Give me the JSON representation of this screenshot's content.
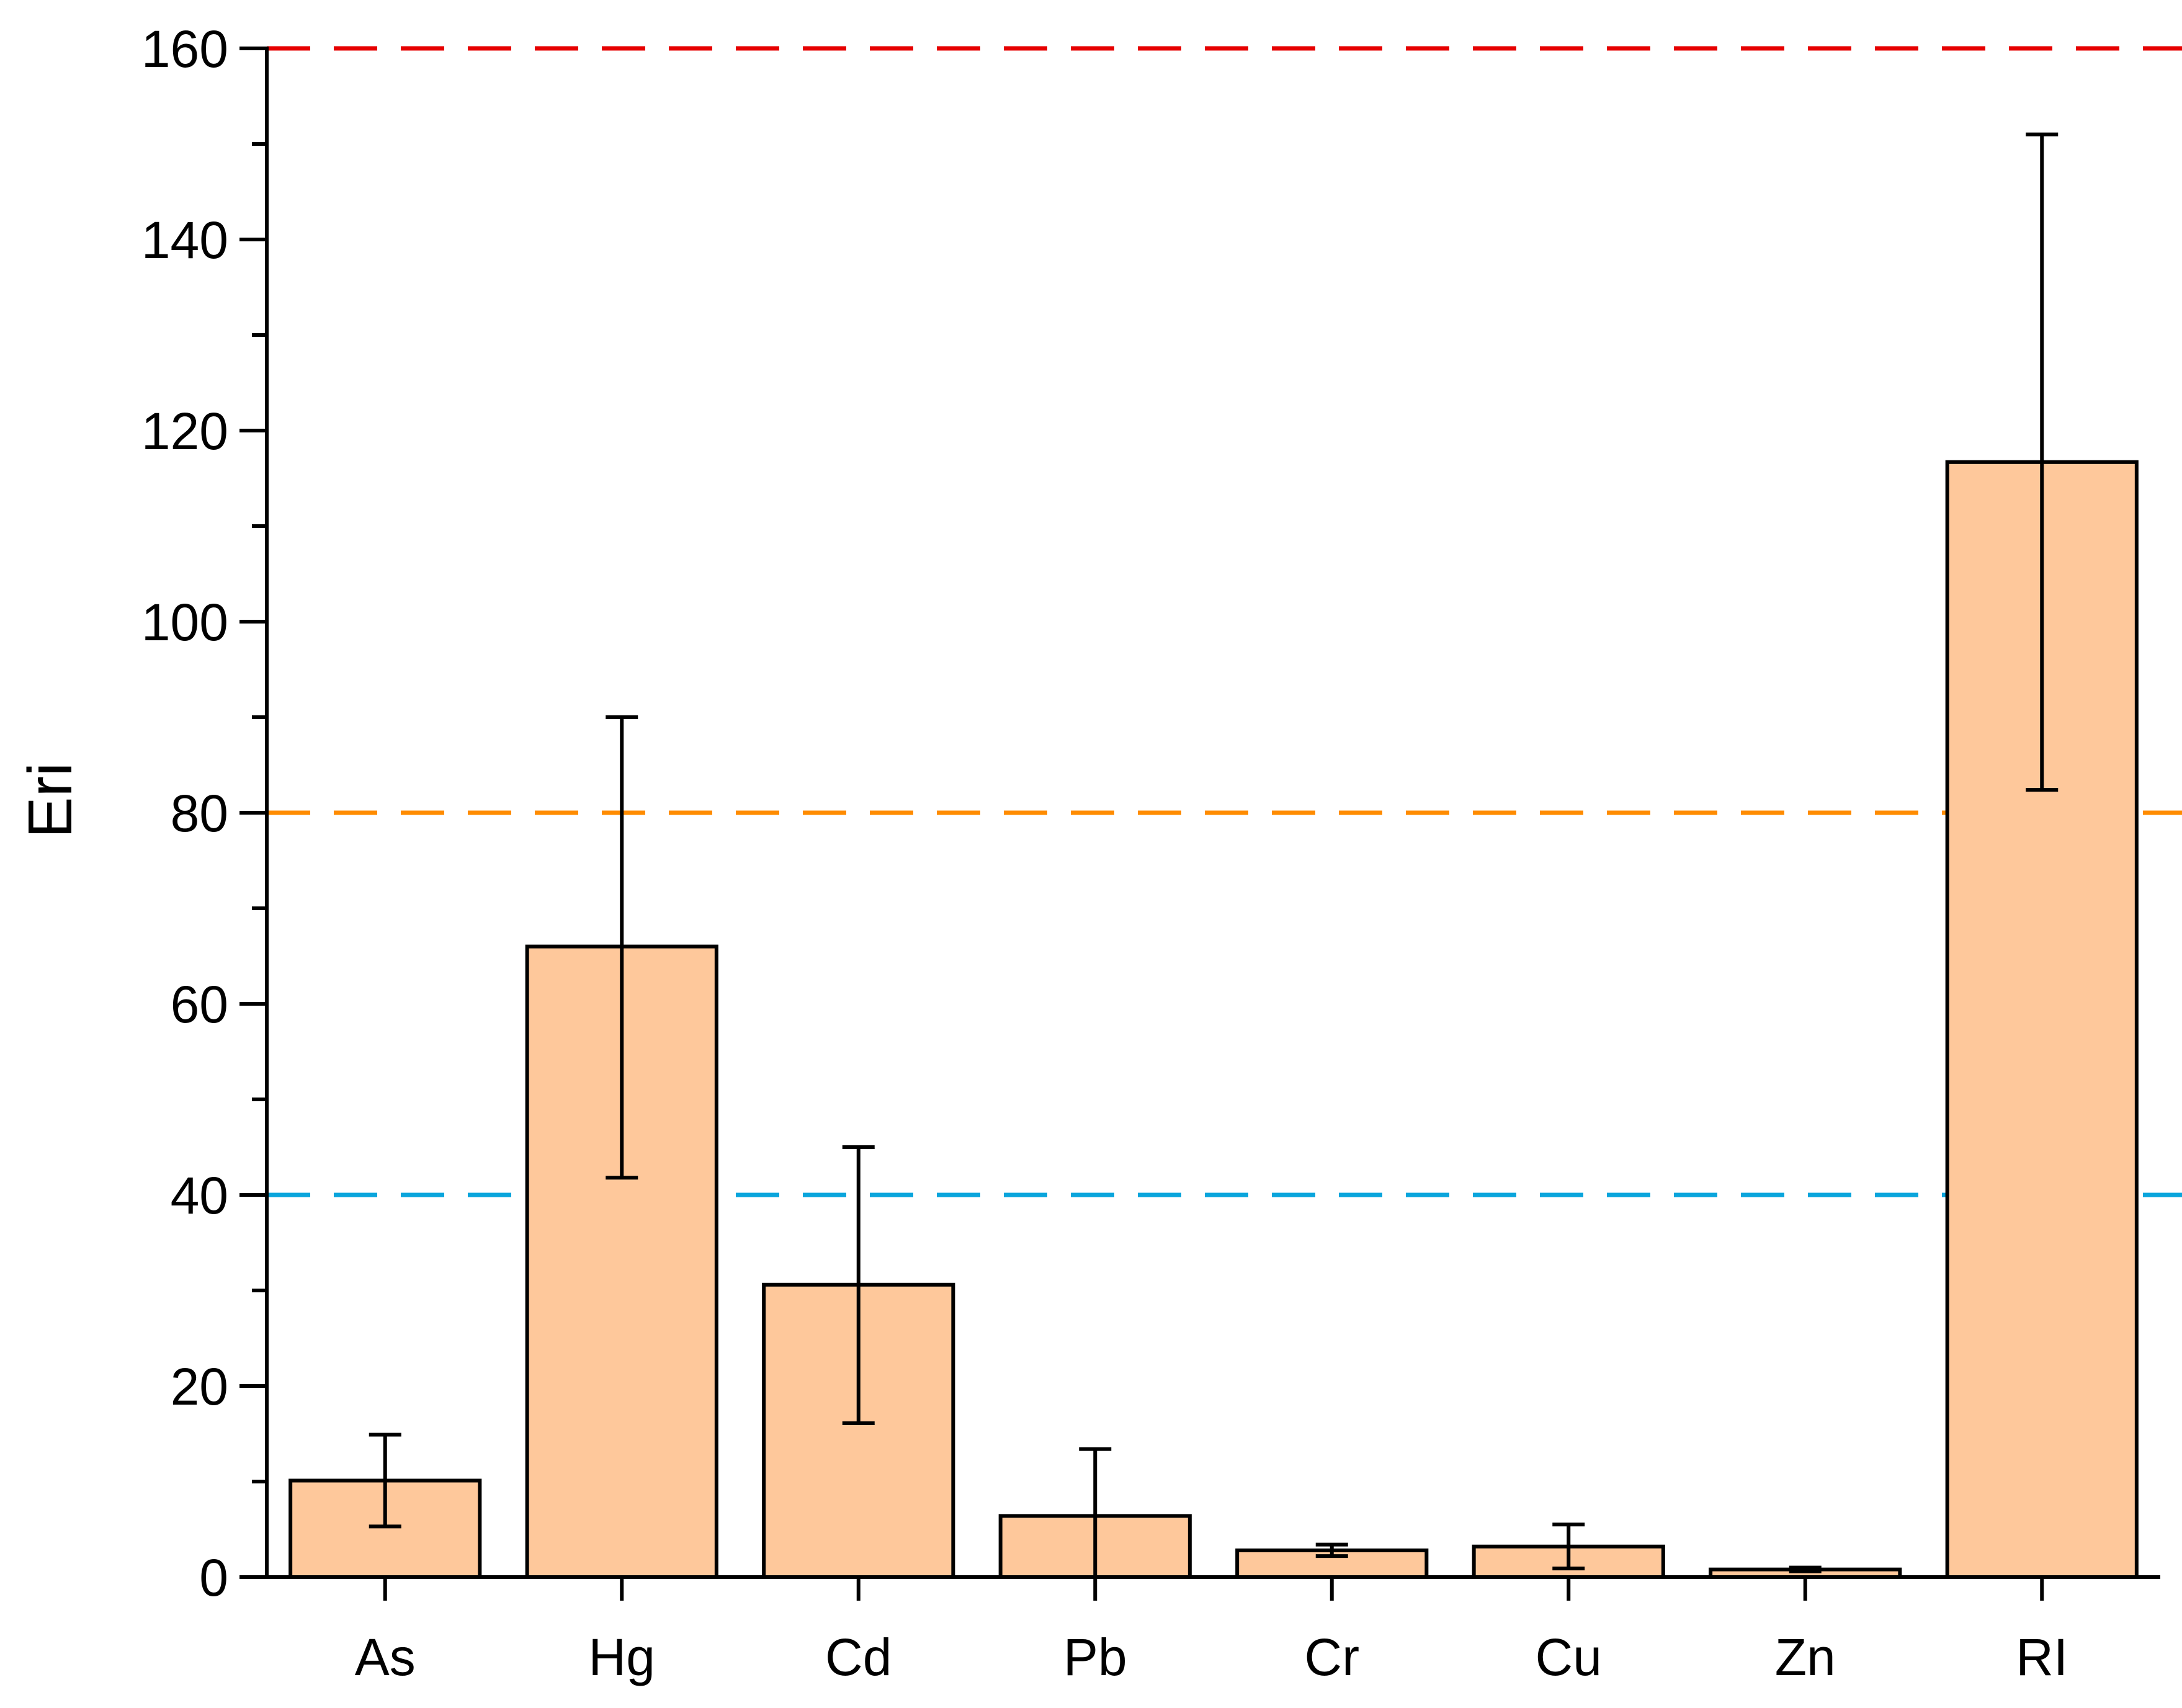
{
  "chart_data": {
    "type": "bar",
    "title": "",
    "xlabel": "",
    "ylabel": "Eri",
    "ylim": [
      0,
      160
    ],
    "yticks": [
      0,
      20,
      40,
      60,
      80,
      100,
      120,
      140,
      160
    ],
    "grid": false,
    "categories": [
      "As",
      "Hg",
      "Cd",
      "Pb",
      "Cr",
      "Cu",
      "Zn",
      "RI"
    ],
    "values": [
      10.1,
      66.0,
      30.6,
      6.4,
      2.8,
      3.2,
      0.8,
      116.7
    ],
    "error_bars": [
      {
        "low": 5.3,
        "high": 14.9
      },
      {
        "low": 41.8,
        "high": 90.0
      },
      {
        "low": 16.1,
        "high": 45.0
      },
      {
        "low": 0,
        "high": 13.4
      },
      {
        "low": 2.2,
        "high": 3.4
      },
      {
        "low": 0.9,
        "high": 5.5
      },
      {
        "low": 0.6,
        "high": 1.0
      },
      {
        "low": 82.4,
        "high": 151.0
      }
    ],
    "reference_lines": [
      {
        "name": "threshold-40",
        "value": 40,
        "color": "#0aa5dc"
      },
      {
        "name": "threshold-80",
        "value": 80,
        "color": "#ff8c00"
      },
      {
        "name": "threshold-160",
        "value": 160,
        "color": "#e60000"
      }
    ],
    "bar_color": "#fec89b"
  }
}
